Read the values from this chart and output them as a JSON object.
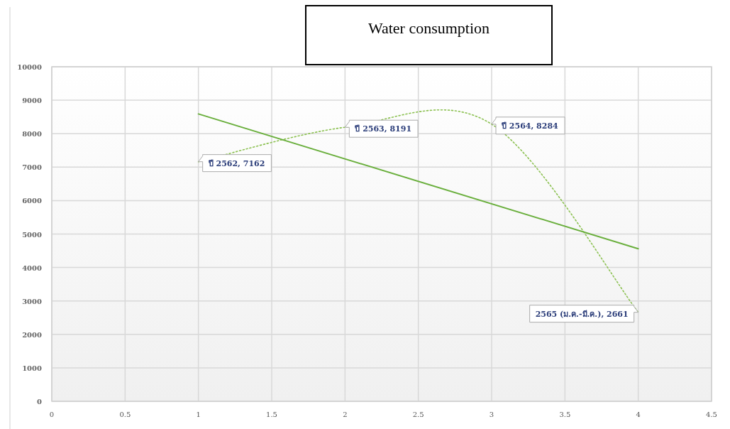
{
  "chart_data": {
    "type": "line",
    "title": "Water consumption",
    "x": [
      1,
      2,
      3,
      4
    ],
    "xlim": [
      0,
      4.5
    ],
    "xticks": [
      0,
      0.5,
      1,
      1.5,
      2,
      2.5,
      3,
      3.5,
      4,
      4.5
    ],
    "ylim": [
      0,
      10000
    ],
    "yticks": [
      0,
      1000,
      2000,
      3000,
      4000,
      5000,
      6000,
      7000,
      8000,
      9000,
      10000
    ],
    "grid": true,
    "series": [
      {
        "color": "#8cc152",
        "line_style": "dotted",
        "values": [
          7162,
          8191,
          8284,
          2661
        ],
        "value_labels": [
          "ปี 2562, 7162",
          "ปี 2563, 8191",
          "ปี 2564, 8284",
          "2565 (ม.ค.-มี.ค.), 2661"
        ]
      },
      {
        "color": "#6aaf3d",
        "line_style": "solid",
        "x": [
          1,
          4
        ],
        "values": [
          8590,
          4560
        ]
      }
    ]
  }
}
